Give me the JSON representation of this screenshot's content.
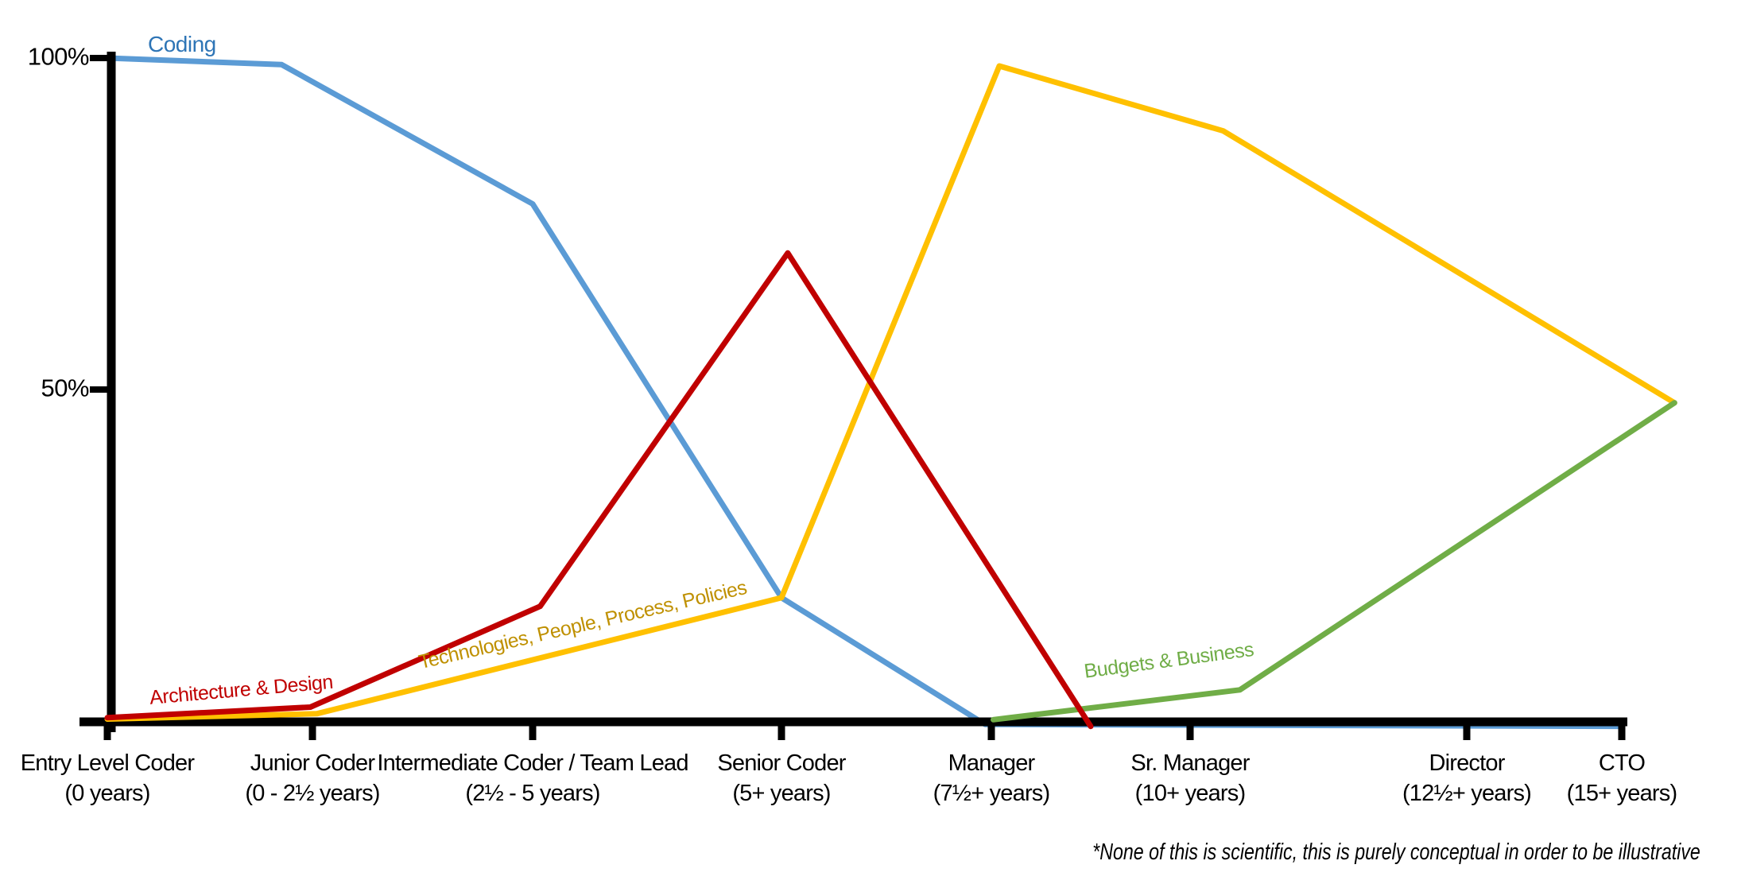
{
  "chart_data": {
    "type": "line",
    "title": "",
    "x_unit": "career stage (fractional index = between stages)",
    "y_unit": "percent of job focus",
    "ylim": [
      0,
      100
    ],
    "grid": false,
    "legend": "inline-colored-labels",
    "y_ticks": [
      {
        "label": "100%",
        "pct": 100
      },
      {
        "label": "50%",
        "pct": 50
      }
    ],
    "categories": [
      {
        "title": "Entry Level Coder",
        "years": "(0 years)"
      },
      {
        "title": "Junior Coder",
        "years": "(0 - 2½ years)"
      },
      {
        "title": "Intermediate Coder / Team Lead",
        "years": "(2½ - 5 years)"
      },
      {
        "title": "Senior Coder",
        "years": "(5+ years)"
      },
      {
        "title": "Manager",
        "years": "(7½+ years)"
      },
      {
        "title": "Sr. Manager",
        "years": "(10+ years)"
      },
      {
        "title": "Director",
        "years": "(12½+ years)"
      },
      {
        "title": "CTO",
        "years": "(15+ years)"
      }
    ],
    "series": [
      {
        "name": "Coding",
        "color": "#5B9BD5",
        "label_color": "#2E75B6",
        "points": [
          [
            0,
            100
          ],
          [
            0.85,
            99
          ],
          [
            2,
            78
          ],
          [
            3,
            18.6
          ],
          [
            3.97,
            -0.5
          ],
          [
            7,
            -0.8
          ]
        ]
      },
      {
        "name": "Technologies, People, Process, Policies",
        "color": "#FFC000",
        "label_color": "#BF9000",
        "points": [
          [
            0,
            0.3
          ],
          [
            1.02,
            1.1
          ],
          [
            3,
            18.6
          ],
          [
            4.04,
            98.8
          ],
          [
            5.12,
            89
          ],
          [
            7.34,
            48
          ]
        ]
      },
      {
        "name": "Budgets & Business",
        "color": "#70AD47",
        "label_color": "#70AD47",
        "points": [
          [
            4.01,
            0.2
          ],
          [
            5.18,
            4.7
          ],
          [
            7.34,
            48
          ]
        ]
      },
      {
        "name": "Architecture & Design",
        "color": "#C00000",
        "label_color": "#C00000",
        "points": [
          [
            0,
            0.5
          ],
          [
            0.99,
            2.1
          ],
          [
            2.03,
            17.3
          ],
          [
            3.03,
            70.6
          ],
          [
            4.5,
            -0.8
          ]
        ]
      }
    ],
    "annotations": {
      "footnote": "*None of this is scientific, this is purely conceptual in order to be illustrative"
    },
    "axis_color": "#000000"
  }
}
